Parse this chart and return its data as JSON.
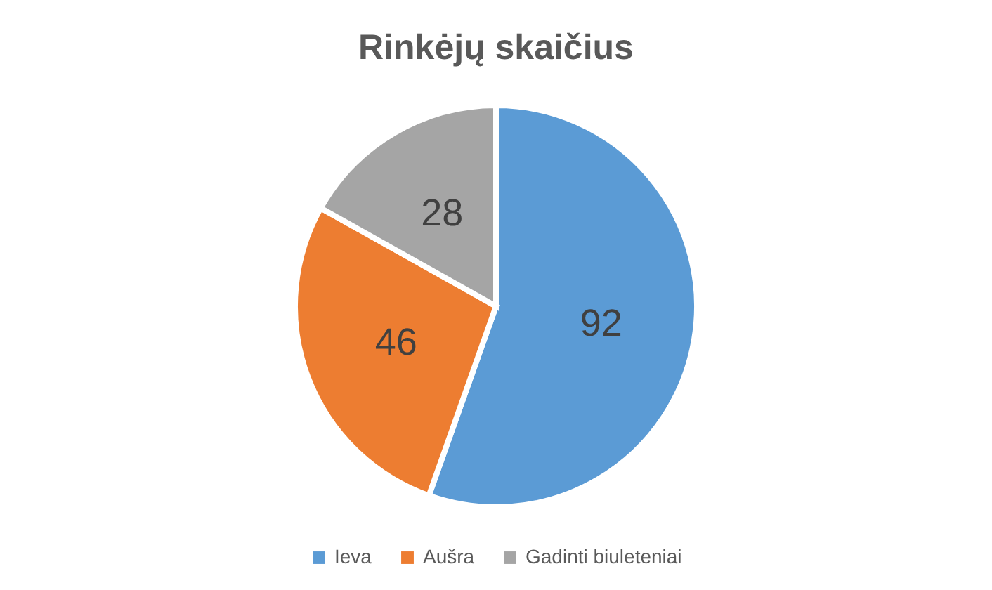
{
  "chart_data": {
    "type": "pie",
    "title": "Rinkėjų skaičius",
    "categories": [
      "Ieva",
      "Aušra",
      "Gadinti biuleteniai"
    ],
    "values": [
      92,
      46,
      28
    ],
    "colors": [
      "#5b9bd5",
      "#ed7d31",
      "#a5a5a5"
    ],
    "data_labels": true,
    "legend": "bottom"
  }
}
